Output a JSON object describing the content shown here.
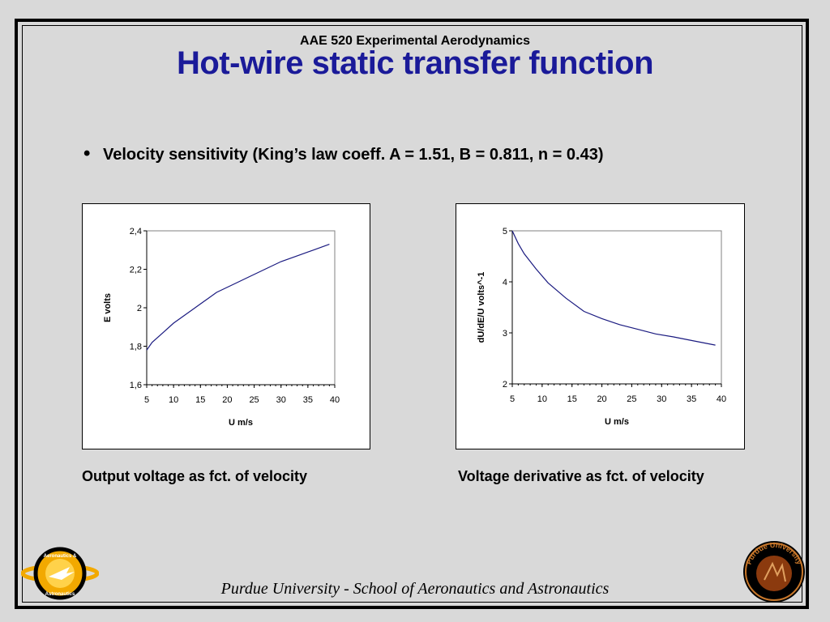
{
  "header": {
    "course": "AAE 520 Experimental Aerodynamics",
    "title": "Hot-wire static transfer function"
  },
  "bullet": {
    "symbol": "•",
    "text": "Velocity sensitivity (King’s law coeff. A = 1.51, B = 0.811, n = 0.43)"
  },
  "captions": {
    "left": "Output voltage as fct. of velocity",
    "right": "Voltage derivative as fct. of velocity"
  },
  "footer": {
    "text": "Purdue University - School of Aeronautics and Astronautics"
  },
  "logos": {
    "left": {
      "text_top": "Aeronautics &",
      "text_bottom": "Astronautics",
      "icon": "aeronautics-planet-logo",
      "color": "#f2a900"
    },
    "right": {
      "text": "Purdue University",
      "icon": "purdue-seal-logo",
      "color": "#8b3a0e"
    }
  },
  "colors": {
    "title": "#1a1a99",
    "series": "#1a1a80"
  },
  "chart_data": [
    {
      "type": "line",
      "title": "",
      "xlabel": "U m/s",
      "ylabel": "E volts",
      "xlim": [
        5,
        40
      ],
      "ylim": [
        1.6,
        2.4
      ],
      "xticks": [
        "5",
        "10",
        "15",
        "20",
        "25",
        "30",
        "35",
        "40"
      ],
      "yticks": [
        "1,6",
        "1,8",
        "2",
        "2,2",
        "2,4"
      ],
      "grid": false,
      "x": [
        5,
        6,
        8,
        10,
        12,
        15,
        18,
        21,
        24,
        27,
        30,
        33,
        36,
        39
      ],
      "series": [
        {
          "values": [
            1.78,
            1.82,
            1.87,
            1.92,
            1.96,
            2.02,
            2.08,
            2.12,
            2.16,
            2.2,
            2.24,
            2.27,
            2.3,
            2.33
          ]
        }
      ]
    },
    {
      "type": "line",
      "title": "",
      "xlabel": "U m/s",
      "ylabel": "dU/dE/U  volts^-1",
      "xlim": [
        5,
        40
      ],
      "ylim": [
        2,
        5
      ],
      "xticks": [
        "5",
        "10",
        "15",
        "20",
        "25",
        "30",
        "35",
        "40"
      ],
      "yticks": [
        "2",
        "3",
        "4",
        "5"
      ],
      "grid": false,
      "x": [
        5,
        6,
        7,
        9,
        11,
        14,
        17,
        20,
        23,
        26,
        29,
        32,
        35,
        39
      ],
      "series": [
        {
          "values": [
            5.0,
            4.75,
            4.55,
            4.25,
            3.98,
            3.68,
            3.42,
            3.28,
            3.16,
            3.07,
            2.98,
            2.92,
            2.85,
            2.76
          ]
        }
      ]
    }
  ]
}
